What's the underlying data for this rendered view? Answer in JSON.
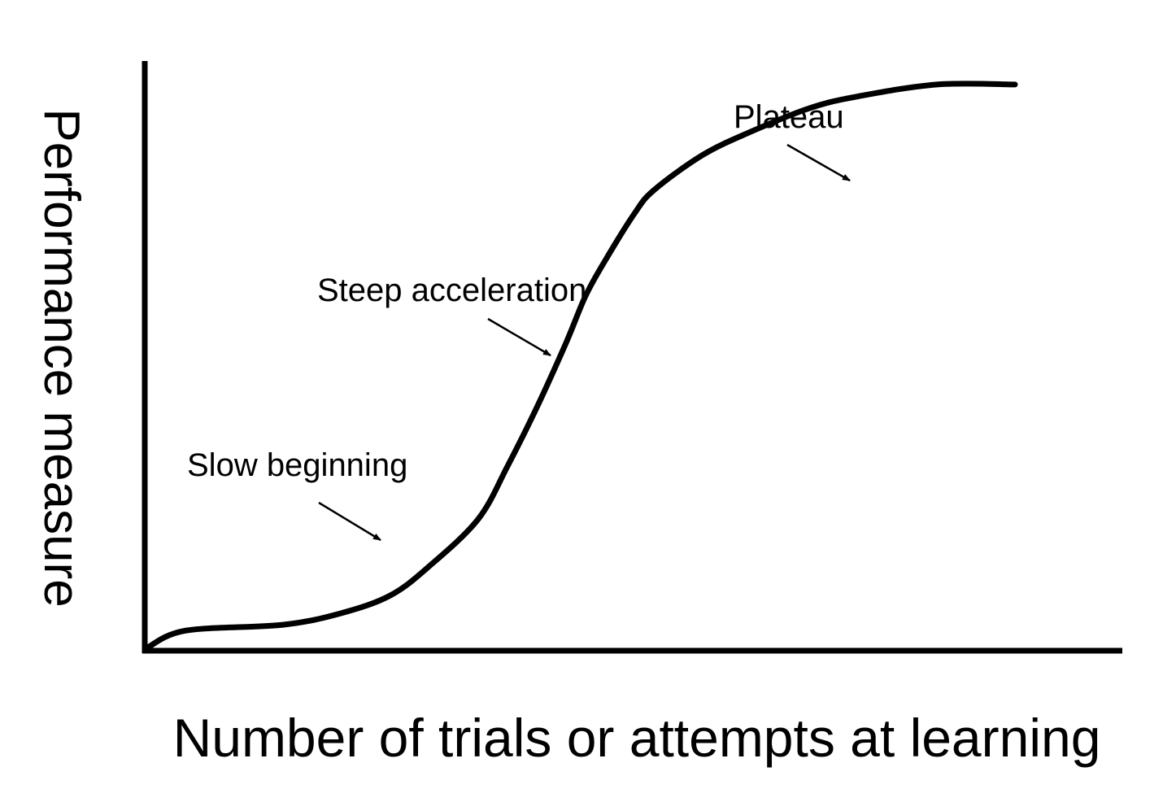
{
  "chart_data": {
    "type": "line",
    "title": "",
    "xlabel": "Number of trials or attempts at learning",
    "ylabel": "Performance measure",
    "xlim": [
      0,
      100
    ],
    "ylim": [
      0,
      100
    ],
    "grid": false,
    "legend": "none",
    "series": [
      {
        "color": "#000000",
        "x": [
          0,
          4,
          14,
          20,
          25,
          29,
          34,
          37,
          40,
          43,
          45,
          47,
          50,
          52,
          57,
          62,
          68,
          73,
          81,
          89
        ],
        "y": [
          0,
          3,
          4,
          6,
          9,
          14,
          22,
          31,
          41,
          52,
          60,
          66,
          74,
          78,
          84,
          88,
          92,
          94,
          96,
          96
        ]
      }
    ],
    "annotations": [
      {
        "text": "Slow beginning"
      },
      {
        "text": "Steep acceleration"
      },
      {
        "text": "Plateau"
      }
    ]
  }
}
